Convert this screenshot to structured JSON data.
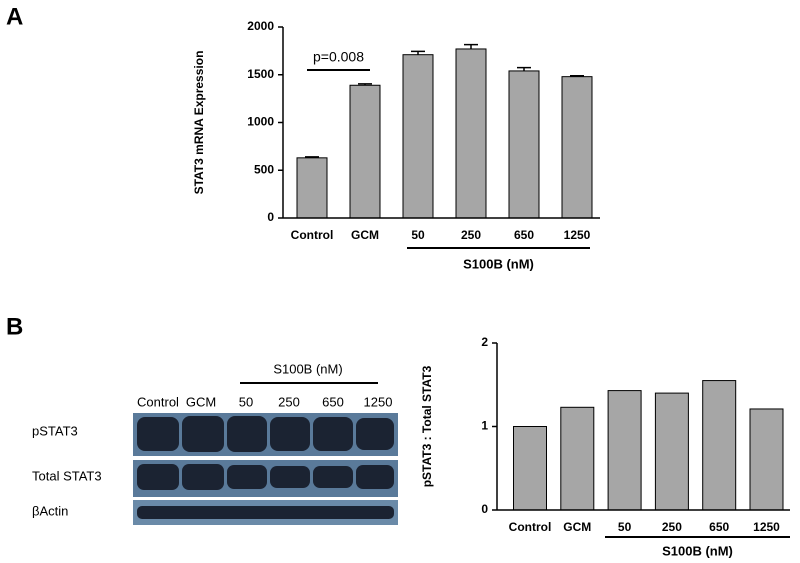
{
  "panel_labels": [
    "A",
    "B"
  ],
  "chart_data": [
    {
      "type": "bar",
      "ylabel": "STAT3 mRNA Expression",
      "categories": [
        "Control",
        "GCM",
        "50",
        "250",
        "650",
        "1250"
      ],
      "values": [
        630,
        1390,
        1710,
        1770,
        1540,
        1480
      ],
      "errors": [
        10,
        15,
        35,
        45,
        35,
        10
      ],
      "color": "#a6a6a6",
      "ylim": [
        0,
        2000
      ],
      "yticks": [
        0,
        500,
        1000,
        1500,
        2000
      ],
      "annotation": "p=0.008",
      "group_label": "S100B (nM)"
    },
    {
      "type": "bar",
      "ylabel": "pSTAT3 : Total STAT3",
      "categories": [
        "Control",
        "GCM",
        "50",
        "250",
        "650",
        "1250"
      ],
      "values": [
        1.0,
        1.23,
        1.43,
        1.4,
        1.55,
        1.21
      ],
      "color": "#a6a6a6",
      "ylim": [
        0,
        2
      ],
      "yticks": [
        0,
        1,
        2
      ],
      "group_label": "S100B (nM)"
    }
  ],
  "blot": {
    "group_label": "S100B (nM)",
    "lanes": [
      "Control",
      "GCM",
      "50",
      "250",
      "650",
      "1250"
    ],
    "rows": [
      "pSTAT3",
      "Total STAT3",
      "βActin"
    ]
  }
}
